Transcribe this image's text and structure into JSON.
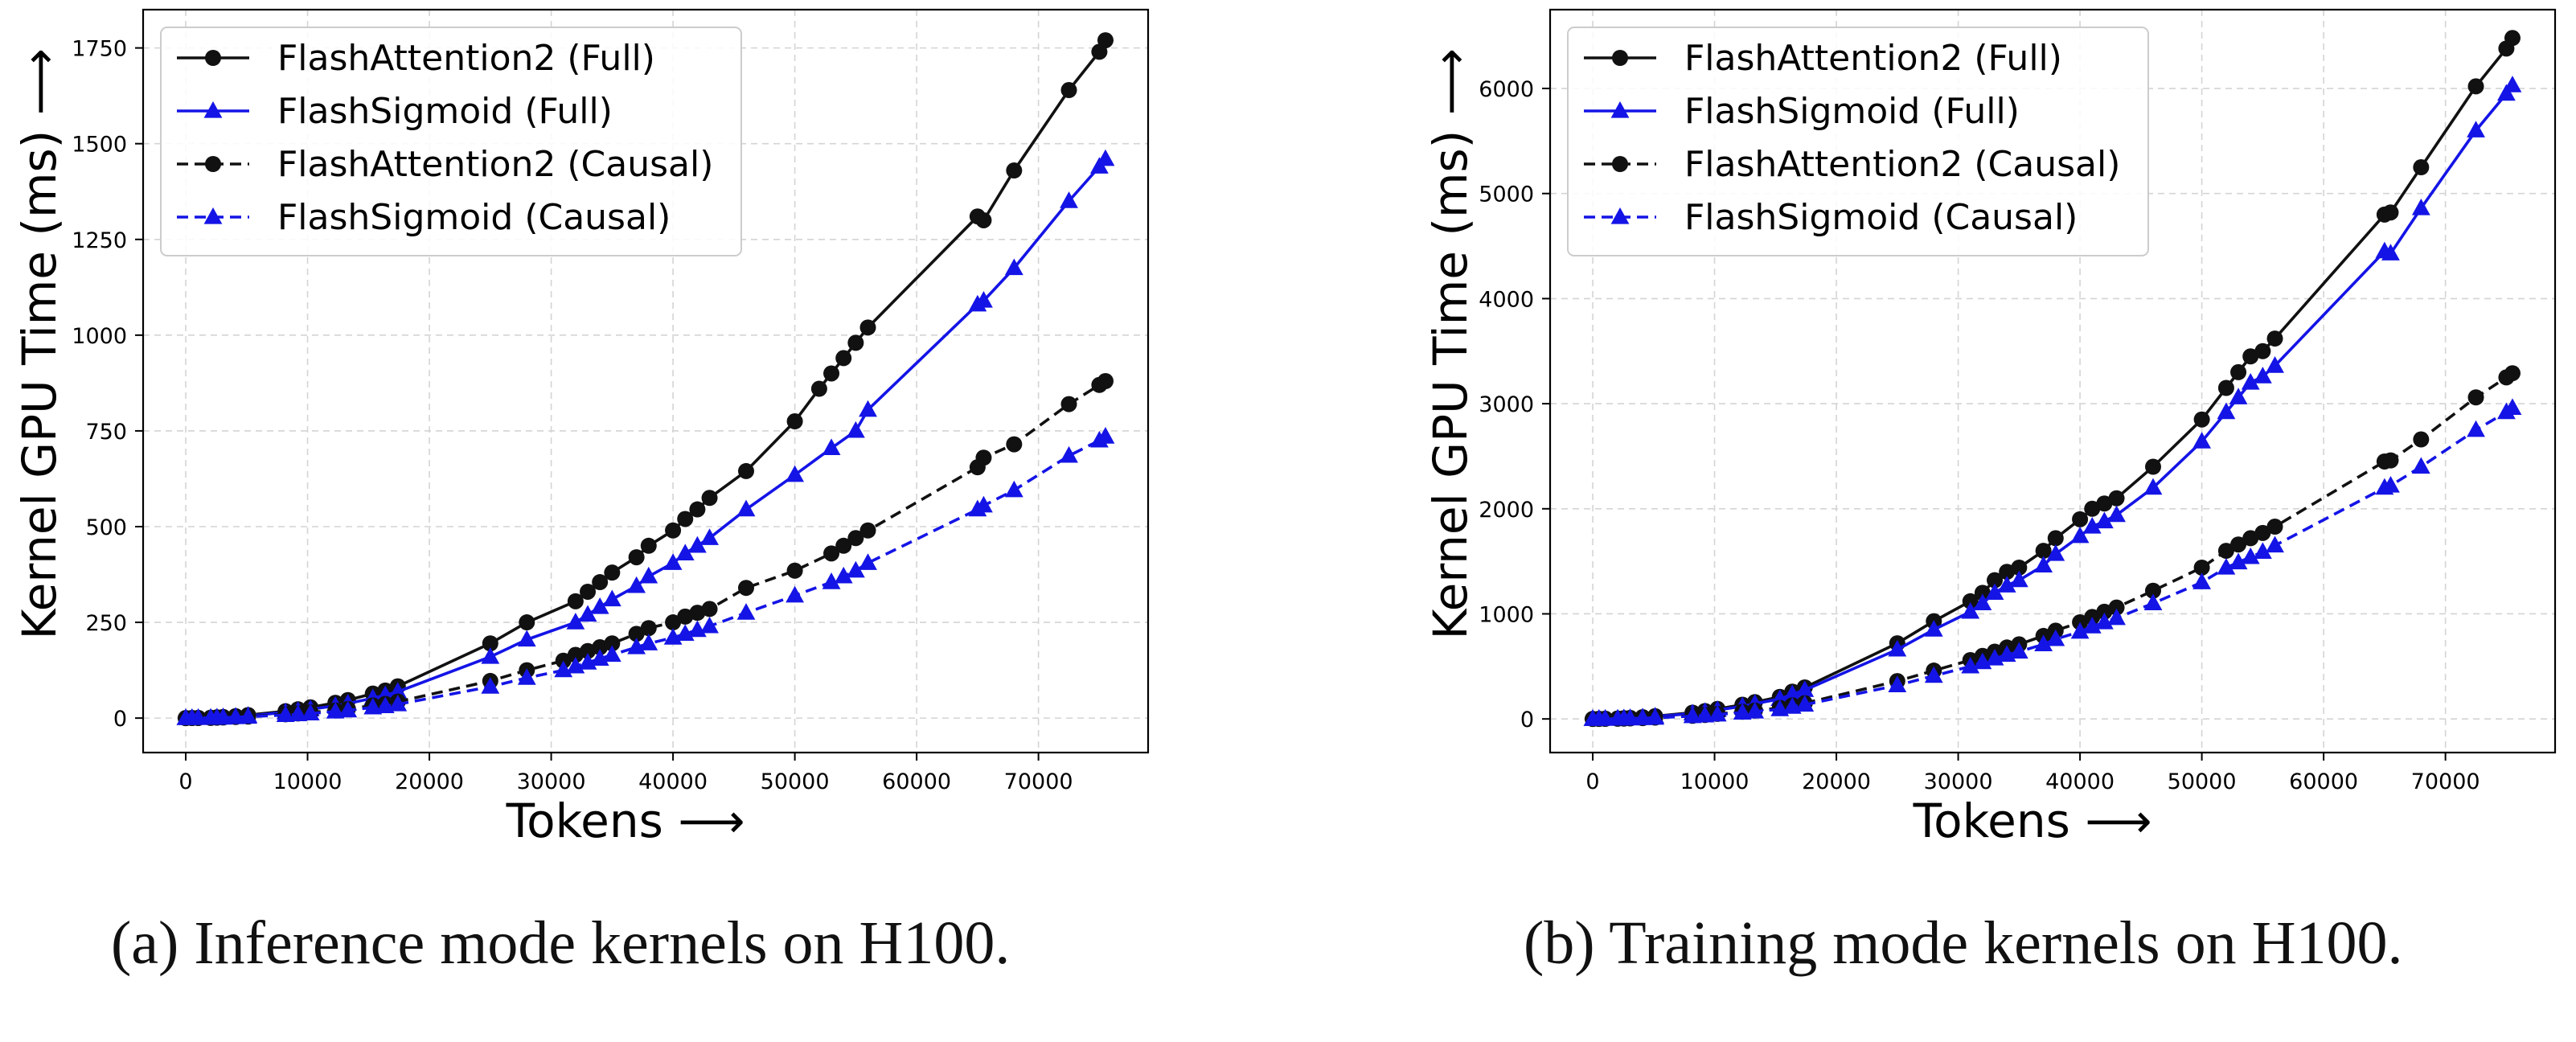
{
  "captions": {
    "a": "(a) Inference mode kernels on H100.",
    "b": "(b) Training mode kernels on H100."
  },
  "chart_data": [
    {
      "type": "line",
      "xlabel": "Tokens ⟶",
      "ylabel": "Kernel GPU Time (ms) ⟶",
      "xlim": [
        -3500,
        79000
      ],
      "ylim": [
        -90,
        1850
      ],
      "xticks": [
        0,
        10000,
        20000,
        30000,
        40000,
        50000,
        60000,
        70000
      ],
      "yticks": [
        0,
        250,
        500,
        750,
        1000,
        1250,
        1500,
        1750
      ],
      "grid": true,
      "legend_position": "top-left",
      "series": [
        {
          "name": "FlashAttention2 (Full)",
          "color": "#111111",
          "marker": "circle",
          "linestyle": "solid",
          "x": [
            0,
            512,
            1024,
            2048,
            2560,
            3072,
            4096,
            5120,
            8192,
            9216,
            10240,
            12288,
            13312,
            15360,
            16384,
            17408,
            25000,
            28000,
            32000,
            33000,
            34000,
            35000,
            37000,
            38000,
            40000,
            41000,
            42000,
            43000,
            46000,
            50000,
            52000,
            53000,
            54000,
            55000,
            56000,
            65000,
            65500,
            68000,
            72500,
            75000,
            75500
          ],
          "y": [
            0,
            0.3,
            0.5,
            1,
            2,
            3,
            5,
            8,
            18,
            23,
            28,
            40,
            47,
            64,
            72,
            83,
            195,
            250,
            305,
            330,
            355,
            380,
            420,
            450,
            490,
            520,
            545,
            575,
            645,
            775,
            860,
            900,
            940,
            980,
            1020,
            1310,
            1300,
            1430,
            1640,
            1740,
            1770
          ]
        },
        {
          "name": "FlashSigmoid (Full)",
          "color": "#1414e6",
          "marker": "triangle",
          "linestyle": "solid",
          "x": [
            0,
            512,
            1024,
            2048,
            2560,
            3072,
            4096,
            5120,
            8192,
            9216,
            10240,
            12288,
            13312,
            15360,
            16384,
            17408,
            25000,
            28000,
            32000,
            33000,
            34000,
            35000,
            37000,
            38000,
            40000,
            41000,
            42000,
            43000,
            46000,
            50000,
            53000,
            55000,
            56000,
            65000,
            65500,
            68000,
            72500,
            75000,
            75500
          ],
          "y": [
            0,
            0.2,
            0.4,
            0.8,
            1.5,
            2.5,
            4,
            6,
            15,
            19,
            23,
            32,
            38,
            52,
            60,
            69,
            160,
            205,
            250,
            270,
            290,
            310,
            345,
            370,
            405,
            430,
            450,
            470,
            545,
            635,
            705,
            750,
            805,
            1080,
            1090,
            1175,
            1350,
            1440,
            1460
          ]
        },
        {
          "name": "FlashAttention2 (Causal)",
          "color": "#111111",
          "marker": "circle",
          "linestyle": "dashed",
          "x": [
            0,
            512,
            1024,
            2048,
            2560,
            3072,
            4096,
            5120,
            8192,
            9216,
            10240,
            12288,
            13312,
            15360,
            16384,
            17408,
            25000,
            28000,
            31000,
            32000,
            33000,
            34000,
            35000,
            37000,
            38000,
            40000,
            41000,
            42000,
            43000,
            46000,
            50000,
            53000,
            54000,
            55000,
            56000,
            65000,
            65500,
            68000,
            72500,
            75000,
            75500
          ],
          "y": [
            0,
            0.2,
            0.3,
            0.6,
            1,
            1.5,
            3,
            4,
            10,
            12,
            15,
            20,
            24,
            33,
            37,
            43,
            97,
            125,
            150,
            165,
            175,
            185,
            195,
            220,
            235,
            250,
            265,
            275,
            285,
            340,
            385,
            430,
            450,
            470,
            490,
            655,
            680,
            715,
            820,
            870,
            880
          ]
        },
        {
          "name": "FlashSigmoid (Causal)",
          "color": "#1414e6",
          "marker": "triangle",
          "linestyle": "dashed",
          "x": [
            0,
            512,
            1024,
            2048,
            2560,
            3072,
            4096,
            5120,
            8192,
            9216,
            10240,
            12288,
            13312,
            15360,
            16384,
            17408,
            25000,
            28000,
            31000,
            32000,
            33000,
            34000,
            35000,
            37000,
            38000,
            40000,
            41000,
            42000,
            43000,
            46000,
            50000,
            53000,
            54000,
            55000,
            56000,
            65000,
            65500,
            68000,
            72500,
            75000,
            75500
          ],
          "y": [
            0,
            0.15,
            0.25,
            0.5,
            0.8,
            1.2,
            2.5,
            3.5,
            8,
            10,
            12,
            17,
            20,
            28,
            31,
            36,
            82,
            105,
            125,
            135,
            145,
            155,
            165,
            185,
            195,
            210,
            220,
            230,
            240,
            275,
            320,
            355,
            370,
            385,
            405,
            545,
            555,
            595,
            685,
            725,
            735
          ]
        }
      ]
    },
    {
      "type": "line",
      "xlabel": "Tokens ⟶",
      "ylabel": "Kernel GPU Time (ms) ⟶",
      "xlim": [
        -3500,
        79000
      ],
      "ylim": [
        -320,
        6750
      ],
      "xticks": [
        0,
        10000,
        20000,
        30000,
        40000,
        50000,
        60000,
        70000
      ],
      "yticks": [
        0,
        1000,
        2000,
        3000,
        4000,
        5000,
        6000
      ],
      "grid": true,
      "legend_position": "top-left",
      "series": [
        {
          "name": "FlashAttention2 (Full)",
          "color": "#111111",
          "marker": "circle",
          "linestyle": "solid",
          "x": [
            0,
            512,
            1024,
            2048,
            2560,
            3072,
            4096,
            5120,
            8192,
            9216,
            10240,
            12288,
            13312,
            15360,
            16384,
            17408,
            25000,
            28000,
            31000,
            32000,
            33000,
            34000,
            35000,
            37000,
            38000,
            40000,
            41000,
            42000,
            43000,
            46000,
            50000,
            52000,
            53000,
            54000,
            55000,
            56000,
            65000,
            65500,
            68000,
            72500,
            75000,
            75500
          ],
          "y": [
            0,
            1,
            2,
            4,
            7,
            10,
            17,
            26,
            60,
            75,
            95,
            135,
            160,
            210,
            260,
            300,
            720,
            930,
            1120,
            1200,
            1320,
            1400,
            1440,
            1600,
            1720,
            1900,
            2000,
            2050,
            2100,
            2400,
            2850,
            3150,
            3300,
            3450,
            3500,
            3620,
            4800,
            4820,
            5250,
            6020,
            6380,
            6480
          ]
        },
        {
          "name": "FlashSigmoid (Full)",
          "color": "#1414e6",
          "marker": "triangle",
          "linestyle": "solid",
          "x": [
            0,
            512,
            1024,
            2048,
            2560,
            3072,
            4096,
            5120,
            8192,
            9216,
            10240,
            12288,
            13312,
            15360,
            16384,
            17408,
            25000,
            28000,
            31000,
            32000,
            33000,
            34000,
            35000,
            37000,
            38000,
            40000,
            41000,
            42000,
            43000,
            46000,
            50000,
            52000,
            53000,
            54000,
            55000,
            56000,
            65000,
            65500,
            68000,
            72500,
            75000,
            75500
          ],
          "y": [
            0,
            1,
            2,
            3,
            6,
            9,
            15,
            23,
            52,
            66,
            85,
            120,
            145,
            190,
            235,
            275,
            660,
            850,
            1020,
            1100,
            1200,
            1270,
            1320,
            1460,
            1570,
            1740,
            1830,
            1880,
            1940,
            2200,
            2640,
            2920,
            3060,
            3200,
            3260,
            3360,
            4450,
            4430,
            4860,
            5600,
            5950,
            6030
          ]
        },
        {
          "name": "FlashAttention2 (Causal)",
          "color": "#111111",
          "marker": "circle",
          "linestyle": "dashed",
          "x": [
            0,
            512,
            1024,
            2048,
            2560,
            3072,
            4096,
            5120,
            8192,
            9216,
            10240,
            12288,
            13312,
            15360,
            16384,
            17408,
            25000,
            28000,
            31000,
            32000,
            33000,
            34000,
            35000,
            37000,
            38000,
            40000,
            41000,
            42000,
            43000,
            46000,
            50000,
            52000,
            53000,
            54000,
            55000,
            56000,
            65000,
            65500,
            68000,
            72500,
            75000,
            75500
          ],
          "y": [
            0,
            0.5,
            1,
            2,
            3,
            5,
            8,
            13,
            30,
            38,
            48,
            68,
            80,
            105,
            130,
            150,
            360,
            460,
            560,
            600,
            640,
            680,
            710,
            790,
            840,
            920,
            970,
            1020,
            1060,
            1220,
            1440,
            1600,
            1660,
            1720,
            1770,
            1830,
            2450,
            2460,
            2660,
            3060,
            3250,
            3290
          ]
        },
        {
          "name": "FlashSigmoid (Causal)",
          "color": "#1414e6",
          "marker": "triangle",
          "linestyle": "dashed",
          "x": [
            0,
            512,
            1024,
            2048,
            2560,
            3072,
            4096,
            5120,
            8192,
            9216,
            10240,
            12288,
            13312,
            15360,
            16384,
            17408,
            25000,
            28000,
            31000,
            32000,
            33000,
            34000,
            35000,
            37000,
            38000,
            40000,
            41000,
            42000,
            43000,
            46000,
            50000,
            52000,
            53000,
            54000,
            55000,
            56000,
            65000,
            65500,
            68000,
            72500,
            75000,
            75500
          ],
          "y": [
            0,
            0.5,
            1,
            2,
            3,
            4,
            7,
            11,
            26,
            33,
            42,
            60,
            70,
            92,
            115,
            135,
            320,
            410,
            500,
            540,
            575,
            610,
            640,
            710,
            760,
            830,
            880,
            920,
            960,
            1100,
            1300,
            1440,
            1490,
            1540,
            1590,
            1650,
            2200,
            2220,
            2400,
            2750,
            2920,
            2960
          ]
        }
      ]
    }
  ]
}
